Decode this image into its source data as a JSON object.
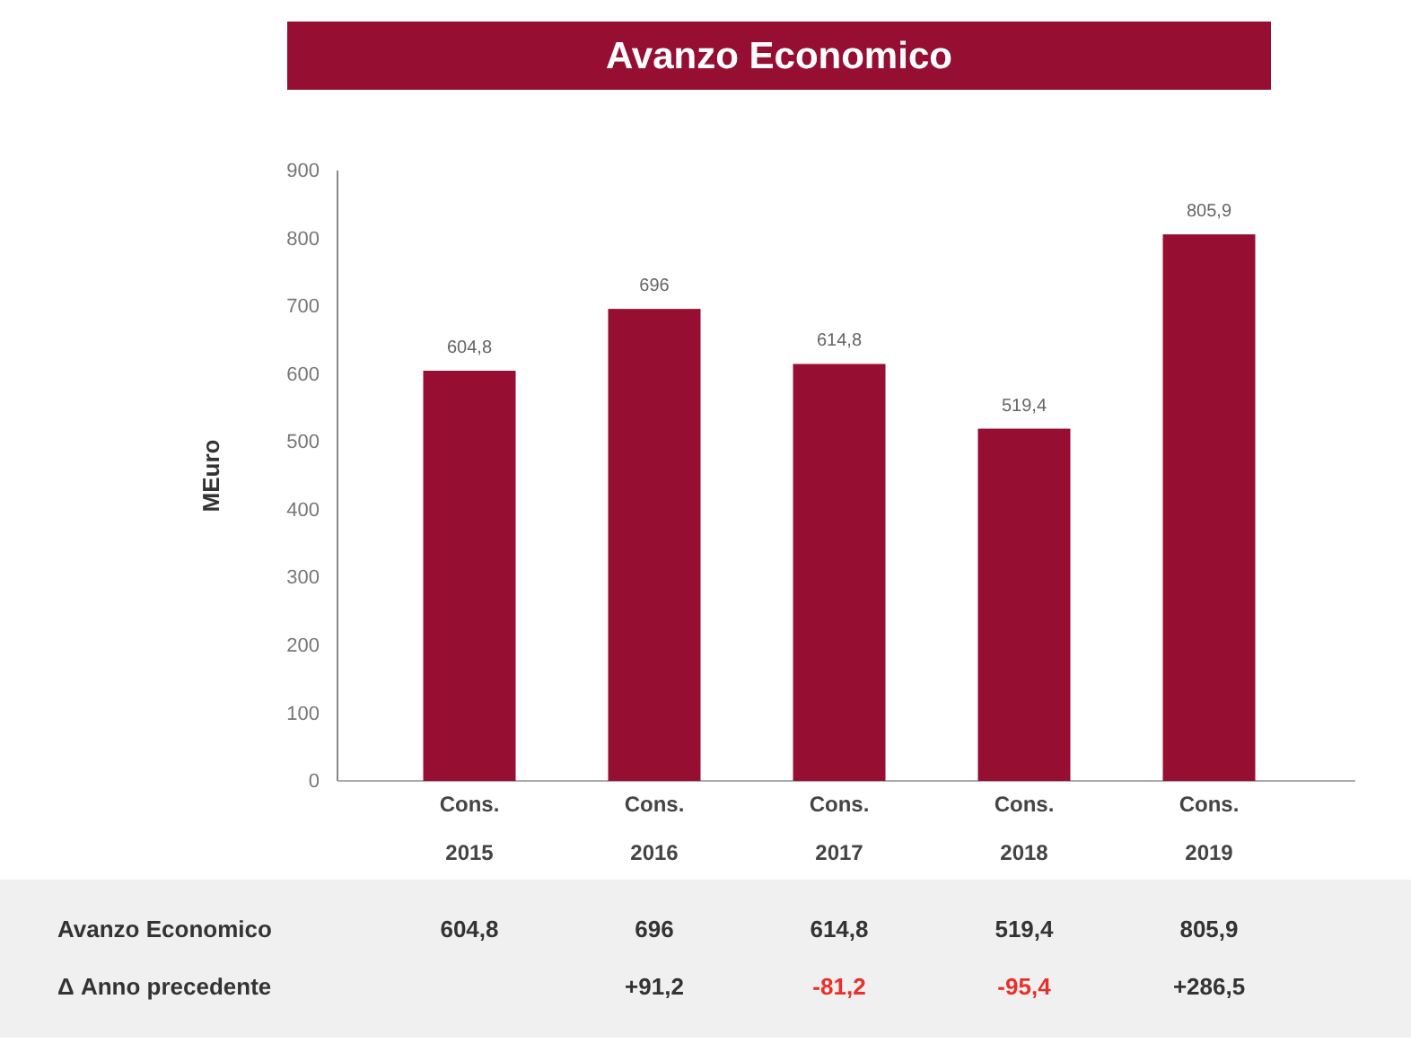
{
  "chart_data": {
    "type": "bar",
    "title": "Avanzo Economico",
    "ylabel": "MEuro",
    "categories": [
      "Cons. 2015",
      "Cons. 2016",
      "Cons. 2017",
      "Cons. 2018",
      "Cons. 2019"
    ],
    "values": [
      604.8,
      696,
      614.8,
      519.4,
      805.9
    ],
    "value_labels": [
      "604,8",
      "696",
      "614,8",
      "519,4",
      "805,9"
    ],
    "color": "#960e32",
    "ylim": [
      0,
      900
    ],
    "yticks": [
      0,
      100,
      200,
      300,
      400,
      500,
      600,
      700,
      800,
      900
    ],
    "grid": false,
    "annotations": [
      "Avanzo Economico",
      "Δ Anno precedente",
      "+91,2",
      "-81,2",
      "-95,4",
      "+286,5"
    ]
  }
}
